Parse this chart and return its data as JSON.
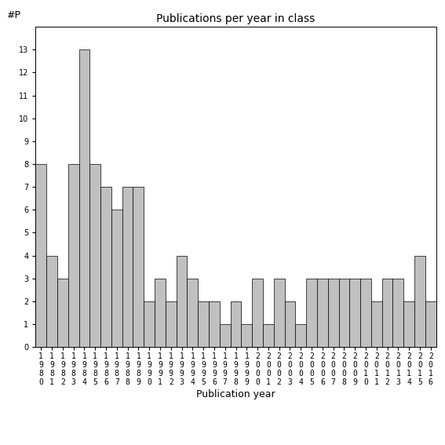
{
  "title": "Publications per year in class",
  "xlabel": "Publication year",
  "ylabel": "#P",
  "bar_color": "#c0c0c0",
  "bar_edge_color": "#000000",
  "bar_edge_width": 0.5,
  "years": [
    1980,
    1981,
    1982,
    1983,
    1984,
    1985,
    1986,
    1987,
    1988,
    1989,
    1990,
    1991,
    1992,
    1993,
    1994,
    1995,
    1996,
    1997,
    1998,
    1999,
    2000,
    2001,
    2002,
    2003,
    2004,
    2005,
    2006,
    2007,
    2008,
    2009,
    2010,
    2011,
    2012,
    2013,
    2014,
    2015,
    2016
  ],
  "values": [
    8,
    4,
    3,
    8,
    13,
    8,
    7,
    6,
    7,
    7,
    2,
    3,
    2,
    4,
    3,
    2,
    2,
    1,
    2,
    1,
    3,
    1,
    3,
    2,
    1,
    3,
    3,
    3,
    3,
    3,
    3,
    2,
    3,
    3,
    2,
    4,
    2
  ],
  "ylim": [
    0,
    14
  ],
  "yticks": [
    0,
    1,
    2,
    3,
    4,
    5,
    6,
    7,
    8,
    9,
    10,
    11,
    12,
    13
  ],
  "background_color": "#ffffff",
  "title_fontsize": 10,
  "axis_fontsize": 9,
  "tick_fontsize": 7
}
